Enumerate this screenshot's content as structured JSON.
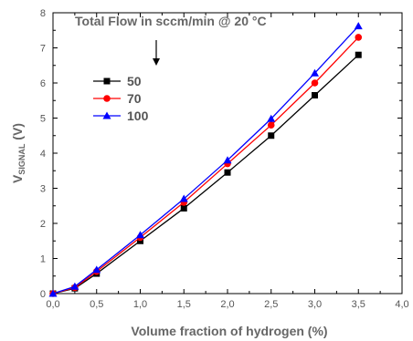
{
  "chart_data": {
    "type": "line",
    "xlabel": "Volume fraction of hydrogen (%)",
    "ylabel_main": "V",
    "ylabel_sub": "SIGNAL",
    "ylabel_unit": " (V)",
    "annotation": "Total Flow in sccm/min @ 20 °C",
    "xlim": [
      0,
      4
    ],
    "ylim": [
      0,
      8
    ],
    "xticks": [
      "0,0",
      "0,5",
      "1,0",
      "1,5",
      "2,0",
      "2,5",
      "3,0",
      "3,5",
      "4,0"
    ],
    "yticks": [
      "0",
      "1",
      "2",
      "3",
      "4",
      "5",
      "6",
      "7",
      "8"
    ],
    "x": [
      0,
      0.25,
      0.5,
      1.0,
      1.5,
      2.0,
      2.5,
      3.0,
      3.5
    ],
    "series": [
      {
        "name": "50",
        "color": "#000000",
        "marker": "square",
        "values": [
          0.0,
          0.15,
          0.57,
          1.5,
          2.43,
          3.45,
          4.5,
          5.65,
          6.8
        ]
      },
      {
        "name": "70",
        "color": "#ff0000",
        "marker": "circle",
        "values": [
          0.0,
          0.17,
          0.63,
          1.6,
          2.6,
          3.7,
          4.8,
          6.0,
          7.3
        ]
      },
      {
        "name": "100",
        "color": "#0000ff",
        "marker": "triangle",
        "values": [
          0.0,
          0.2,
          0.68,
          1.67,
          2.7,
          3.8,
          4.98,
          6.28,
          7.62
        ]
      }
    ],
    "legend_position": "top-left"
  }
}
